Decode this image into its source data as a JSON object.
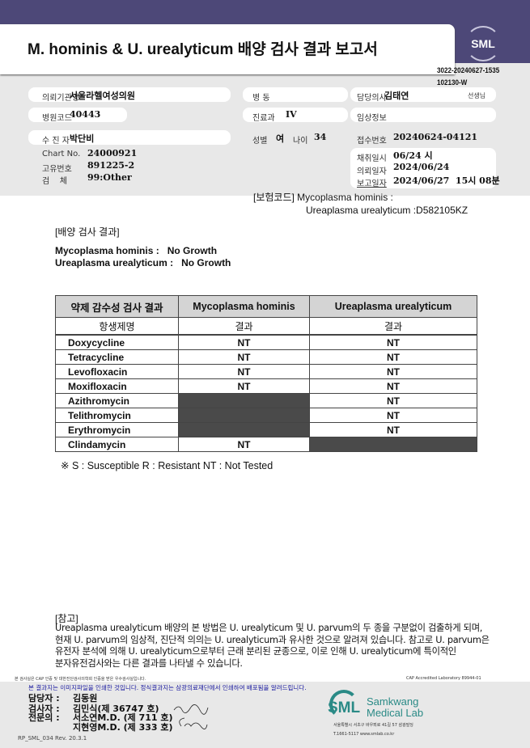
{
  "header": {
    "title": "M. hominis & U. urealyticum 배양 검사 결과 보고서",
    "logo": "SML",
    "doc_no_1": "3022-20240627-1535",
    "doc_no_2": "102130-W"
  },
  "info": {
    "institution_label": "의뢰기관명",
    "institution": "서울라헬여성의원",
    "ward_label": "병 동",
    "ward": "",
    "doctor_label": "담당의사",
    "doctor": "김태연",
    "doctor_suffix": "선생님",
    "hospital_code_label": "병원코드",
    "hospital_code": "40443",
    "dept_label": "진료과",
    "dept": "IV",
    "clinical_label": "임상정보",
    "clinical": "",
    "patient_label": "수 진 자",
    "patient": "박단비",
    "sex_label": "성별",
    "sex": "여",
    "age_label": "나이",
    "age": "34",
    "receipt_label": "접수번호",
    "receipt": "20240624-04121",
    "chart_label": "Chart No.",
    "chart": "24000921",
    "unique_label": "고유번호",
    "unique": "891225-2",
    "specimen_label": "검    체",
    "specimen": "99:Other",
    "collect_label": "채취일시",
    "collect": "06/24 시",
    "request_label": "의뢰일자",
    "request": "2024/06/24",
    "report_label": "보고일자",
    "report": "2024/06/27  15시 08분"
  },
  "insurance": {
    "line1": "[보험코드] Mycoplasma hominis :",
    "line2": "Ureaplasma urealyticum :D582105KZ"
  },
  "culture": {
    "heading": "[배양 검사 결과]",
    "mh": "Mycoplasma hominis :   No Growth",
    "uu": "Ureaplasma urealyticum :   No Growth"
  },
  "table": {
    "headers": [
      "약제 감수성 검사 결과",
      "Mycoplasma hominis",
      "Ureaplasma urealyticum"
    ],
    "subheaders": [
      "항생제명",
      "결과",
      "결과"
    ],
    "rows": [
      {
        "drug": "Doxycycline",
        "mh": "NT",
        "uu": "NT"
      },
      {
        "drug": "Tetracycline",
        "mh": "NT",
        "uu": "NT"
      },
      {
        "drug": "Levofloxacin",
        "mh": "NT",
        "uu": "NT"
      },
      {
        "drug": "Moxifloxacin",
        "mh": "NT",
        "uu": "NT"
      },
      {
        "drug": "Azithromycin",
        "mh": null,
        "uu": "NT"
      },
      {
        "drug": "Telithromycin",
        "mh": null,
        "uu": "NT"
      },
      {
        "drug": "Erythromycin",
        "mh": null,
        "uu": "NT"
      },
      {
        "drug": "Clindamycin",
        "mh": "NT",
        "uu": null
      }
    ],
    "legend": "※ S : Susceptible R : Resistant NT : Not Tested"
  },
  "note": {
    "heading": "[참고]",
    "lines": [
      "Ureaplasma urealyticum 배양의 본 방법은 U. urealyticum 및 U. parvum의 두 종을 구분없이 검출하게 되며,",
      "현재 U. parvum의 임상적, 진단적 의의는 U. urealyticum과 유사한 것으로 알려져 있습니다. 참고로 U. parvum은",
      "유전자 분석에 의해 U. urealyticum으로부터 근래 분리된 균종으로, 이로 인해 U. urealyticum에 특이적인",
      "분자유전검사와는 다른 결과를 나타낼 수 있습니다."
    ]
  },
  "footer": {
    "cert_text": "본 검사실은 CAP 인증 및 대한진단검사의학회 인증을 받은 우수검사실입니다.",
    "cap": "CAP Accredited Laboratory 89944-01",
    "notice": "본 결과지는 이미지파일을 인쇄한 것입니다. 정식결과지는 삼광의료재단에서 인쇄하여 배포됨을 알려드립니다.",
    "manager_label": "담당자 :",
    "manager": "김동원",
    "tester_label": "검사자 :",
    "tester": "김민식(제 36747 호)",
    "specialist_label": "전문의 :",
    "specialist1": "서소연M.D. (제 711 호)",
    "specialist2": "지현영M.D. (제 333 호)",
    "form_no": "RP_SML_034 Rev. 20.3.1",
    "lab_logo": "SML",
    "lab_name1": "Samkwang",
    "lab_name2": "Medical Lab",
    "address": "서울특별시 서초구 바우뫼로 41길 57 삼광빌딩",
    "phone": "T.1661-5117 www.smlab.co.kr"
  },
  "colors": {
    "band": "#4d4878",
    "gray": "#e8e8e8",
    "dark_cell": "#4a4a4a",
    "notice": "#1a1aa0",
    "logo_teal": "#2a8a86"
  }
}
